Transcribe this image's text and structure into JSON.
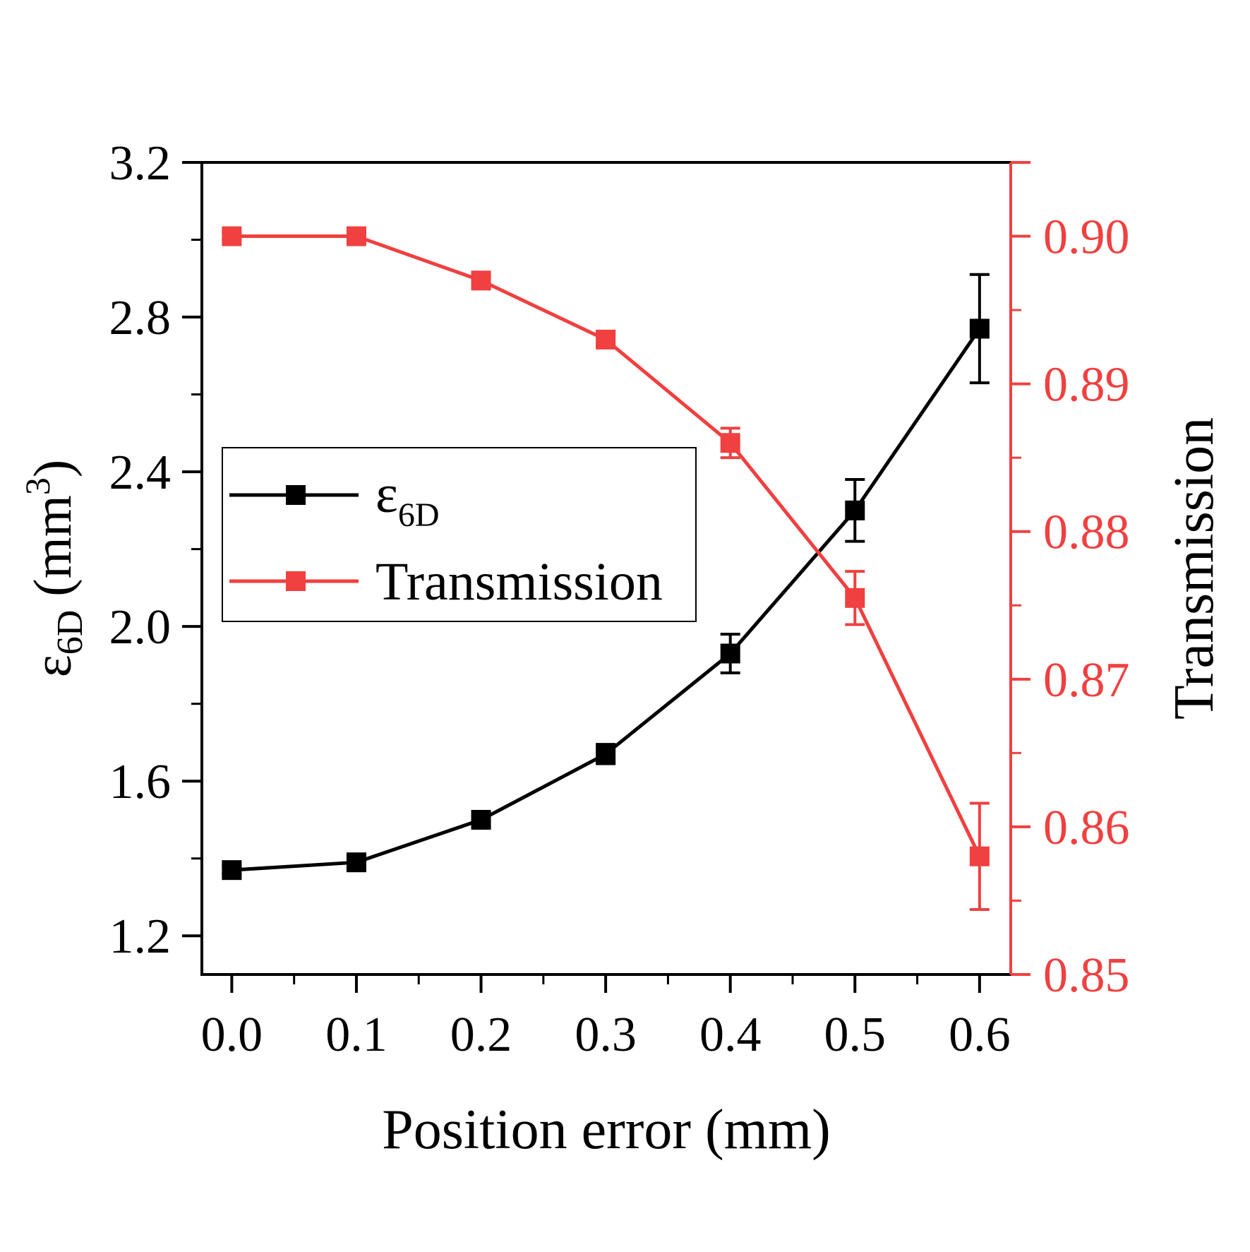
{
  "chart_data": {
    "type": "line",
    "x_label": "Position error (mm)",
    "x": [
      0.0,
      0.1,
      0.2,
      0.3,
      0.4,
      0.5,
      0.6
    ],
    "x_ticks": [
      "0.0",
      "0.1",
      "0.2",
      "0.3",
      "0.4",
      "0.5",
      "0.6"
    ],
    "xlim": [
      -0.024,
      0.625
    ],
    "y_left": {
      "label_main": "ε",
      "label_sub": "6D",
      "label_unit_open": " (mm",
      "label_sup": "3",
      "label_unit_close": ")",
      "ylim": [
        1.1,
        3.2
      ],
      "ticks": [
        "1.2",
        "1.6",
        "2.0",
        "2.4",
        "2.8",
        "3.2"
      ],
      "tick_values": [
        1.2,
        1.6,
        2.0,
        2.4,
        2.8,
        3.2
      ],
      "color": "#000000"
    },
    "y_right": {
      "label": "Transmission",
      "ylim": [
        0.85,
        0.905
      ],
      "ticks": [
        "0.85",
        "0.86",
        "0.87",
        "0.88",
        "0.89",
        "0.90"
      ],
      "tick_values": [
        0.85,
        0.86,
        0.87,
        0.88,
        0.89,
        0.9
      ],
      "color": "#f04040"
    },
    "series": [
      {
        "name": "ε",
        "name_sub": "6D",
        "axis": "left",
        "color": "#000000",
        "values": [
          1.37,
          1.39,
          1.5,
          1.67,
          1.93,
          2.3,
          2.77
        ],
        "errors": [
          0.01,
          0.015,
          0.02,
          0.025,
          0.05,
          0.08,
          0.14
        ]
      },
      {
        "name": "Transmission",
        "axis": "right",
        "color": "#f04040",
        "values": [
          0.9,
          0.9,
          0.897,
          0.893,
          0.886,
          0.8755,
          0.858
        ],
        "errors": [
          0.0002,
          0.0003,
          0.0003,
          0.0004,
          0.001,
          0.0018,
          0.0036
        ]
      }
    ],
    "legend": "upper-left"
  }
}
